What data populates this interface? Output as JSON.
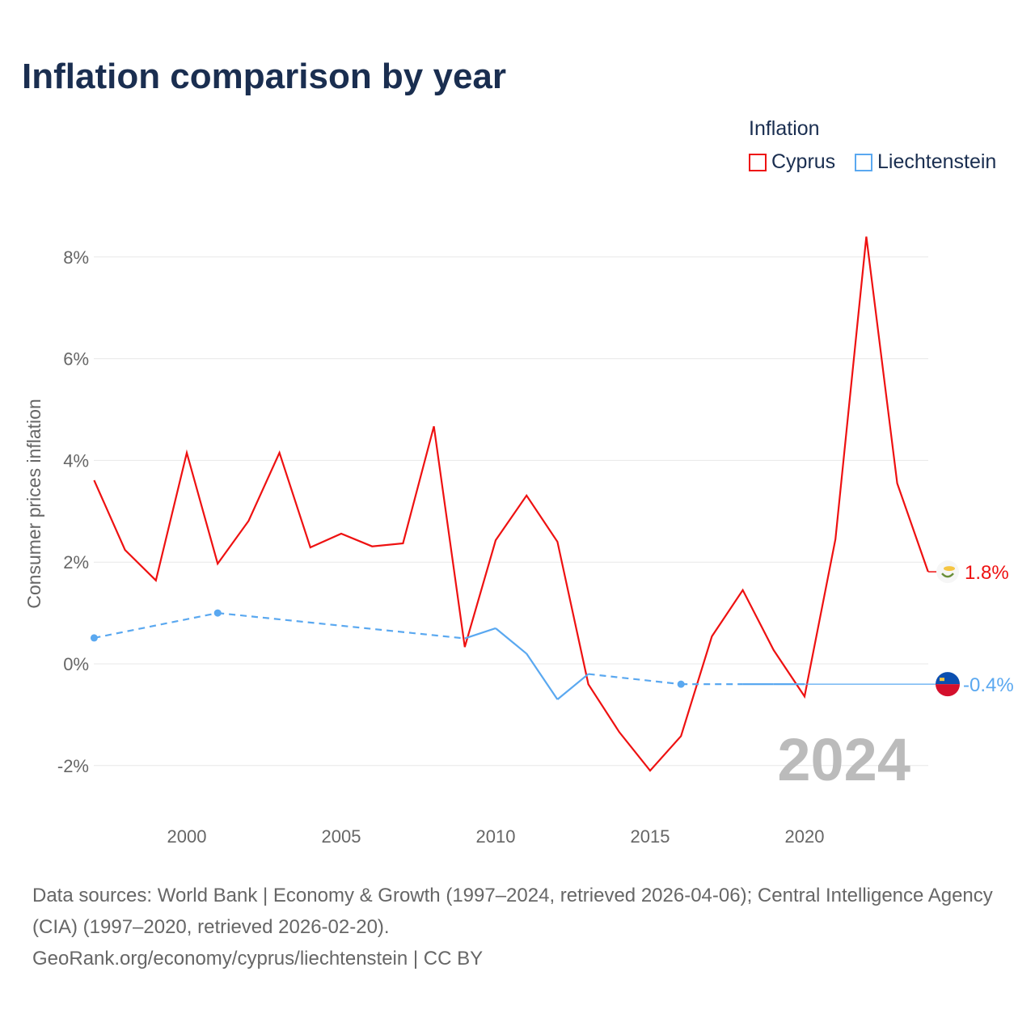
{
  "title": "Inflation comparison by year",
  "legend": {
    "title": "Inflation",
    "items": [
      {
        "name": "Cyprus",
        "color": "#ee1111"
      },
      {
        "name": "Liechtenstein",
        "color": "#5aa8f0"
      }
    ]
  },
  "footer": {
    "line1": "Data sources: World Bank | Economy & Growth (1997–2024, retrieved 2026-04-06); Central Intelligence Agency (CIA) (1997–2020, retrieved 2026-02-20).",
    "line2": "GeoRank.org/economy/cyprus/liechtenstein | CC BY"
  },
  "chart_data": {
    "type": "line",
    "title": "Inflation comparison by year",
    "ylabel": "Consumer prices inflation",
    "xlim": [
      1997,
      2024
    ],
    "ylim": [
      -3,
      8.5
    ],
    "yticks": [
      {
        "v": 8,
        "label": "8%"
      },
      {
        "v": 6,
        "label": "6%"
      },
      {
        "v": 4,
        "label": "4%"
      },
      {
        "v": 2,
        "label": "2%"
      },
      {
        "v": 0,
        "label": "0%"
      },
      {
        "v": -2,
        "label": "-2%"
      }
    ],
    "xticks": [
      {
        "v": 2000,
        "label": "2000"
      },
      {
        "v": 2005,
        "label": "2005"
      },
      {
        "v": 2010,
        "label": "2010"
      },
      {
        "v": 2015,
        "label": "2015"
      },
      {
        "v": 2020,
        "label": "2020"
      }
    ],
    "year_label": "2024",
    "series": [
      {
        "name": "Cyprus",
        "color": "#ee1111",
        "end_label": "1.8%",
        "x": [
          1997,
          1998,
          1999,
          2000,
          2001,
          2002,
          2003,
          2004,
          2005,
          2006,
          2007,
          2008,
          2009,
          2010,
          2011,
          2012,
          2013,
          2014,
          2015,
          2016,
          2017,
          2018,
          2019,
          2020,
          2021,
          2022,
          2023,
          2024
        ],
        "y": [
          3.61,
          2.24,
          1.64,
          4.15,
          1.97,
          2.81,
          4.15,
          2.29,
          2.56,
          2.31,
          2.37,
          4.67,
          0.33,
          2.43,
          3.31,
          2.4,
          -0.4,
          -1.34,
          -2.1,
          -1.42,
          0.54,
          1.45,
          0.27,
          -0.64,
          2.45,
          8.4,
          3.55,
          1.81
        ]
      },
      {
        "name": "Liechtenstein",
        "color": "#5aa8f0",
        "end_label": "-0.4%",
        "x": [
          1997,
          2001,
          2009,
          2010,
          2011,
          2012,
          2013,
          2016,
          2018,
          2019,
          2020
        ],
        "y": [
          0.51,
          1.0,
          0.5,
          0.7,
          0.2,
          -0.7,
          -0.2,
          -0.4,
          -0.4,
          -0.4,
          -0.4
        ]
      }
    ]
  }
}
